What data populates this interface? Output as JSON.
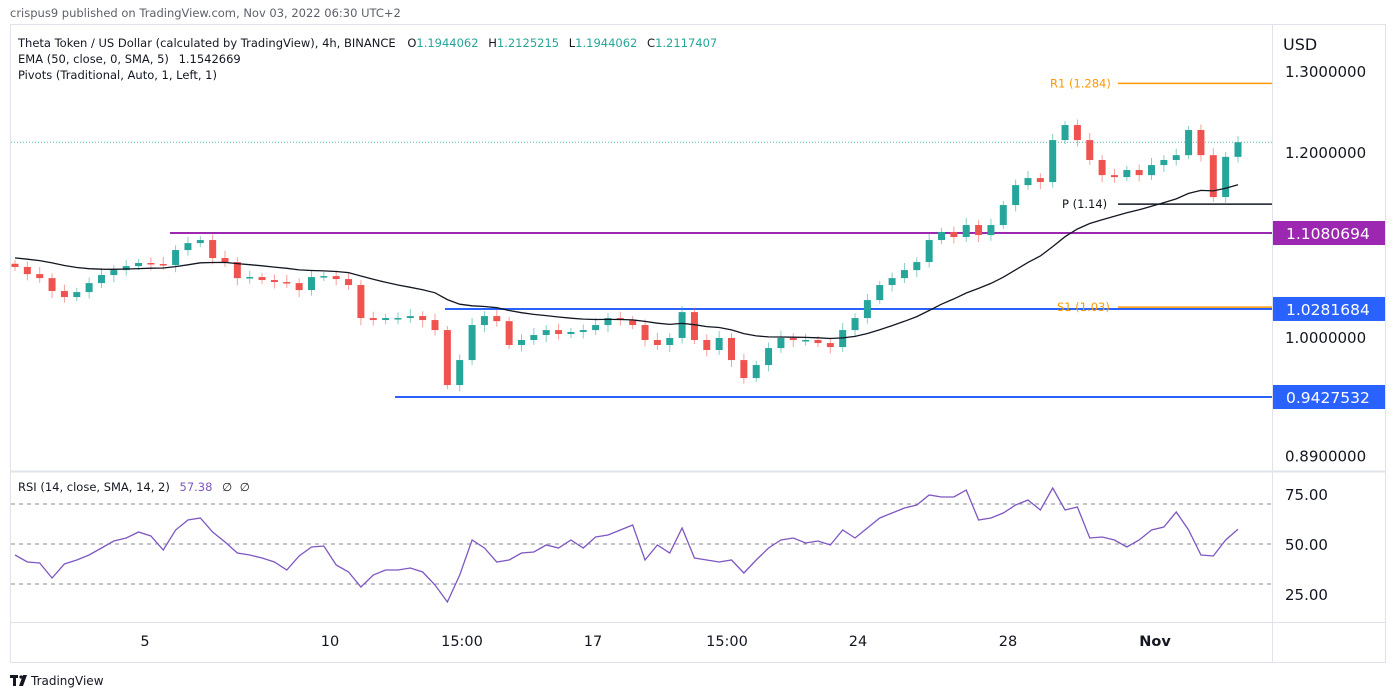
{
  "header": {
    "published": "crispus9 published on TradingView.com, Nov 03, 2022 06:30 UTC+2"
  },
  "legend": {
    "symbol": "Theta Token / US Dollar (calculated by TradingView), 4h, BINANCE",
    "o_label": "O",
    "o": "1.1944062",
    "h_label": "H",
    "h": "1.2125215",
    "l_label": "L",
    "l": "1.1944062",
    "c_label": "C",
    "c": "1.2117407",
    "ema": "EMA (50, close, 0, SMA, 5)",
    "ema_value": "1.1542669",
    "pivots": "Pivots (Traditional, Auto, 1, Left, 1)"
  },
  "rsi_legend": {
    "label": "RSI (14, close, SMA, 14, 2)",
    "value": "57.38",
    "extra1": "∅",
    "extra2": "∅"
  },
  "price_axis": {
    "currency": "USD",
    "ticks": [
      "1.3000000",
      "1.2000000",
      "1.0000000",
      "0.8900000"
    ],
    "tick_values": [
      1.3,
      1.2,
      1.0,
      0.89
    ],
    "scale": "log"
  },
  "rsi_axis": {
    "ticks": [
      "75.00",
      "50.00",
      "25.00"
    ],
    "tick_values": [
      75,
      50,
      25
    ],
    "bands": [
      70,
      50,
      30
    ]
  },
  "time_axis": {
    "labels": [
      "5",
      "10",
      "15:00",
      "17",
      "15:00",
      "24",
      "28",
      "Nov"
    ]
  },
  "levels": {
    "purple": {
      "label": "1.1080694",
      "value": 1.1080694,
      "color": "#9c27b0"
    },
    "blue_upper": {
      "label": "1.0281684",
      "value": 1.0281684,
      "color": "#2962ff"
    },
    "blue_lower": {
      "label": "0.9427532",
      "value": 0.9427532,
      "color": "#2962ff"
    }
  },
  "pivots": {
    "r1": {
      "label": "R1 (1.284)",
      "value": 1.284,
      "color": "#ff9800"
    },
    "p": {
      "label": "P (1.14)",
      "value": 1.14,
      "color": "#131722"
    },
    "s1": {
      "label": "S1 (1.03)",
      "value": 1.03,
      "color": "#ff9800"
    }
  },
  "colors": {
    "up": "#26a69a",
    "down": "#ef5350",
    "ema": "#131722",
    "rsi": "#7e57c2",
    "last_price_line": "#26a69a"
  },
  "footer": {
    "brand": "TradingView"
  },
  "chart_data": {
    "type": "candlestick",
    "interval": "4h",
    "y_scale": "log",
    "ylim": [
      0.87,
      1.33
    ],
    "last_close": 1.2117407,
    "close": [
      1.0716,
      1.0641,
      1.0599,
      1.0465,
      1.0403,
      1.0454,
      1.0547,
      1.0631,
      1.0683,
      1.0725,
      1.0758,
      1.0747,
      1.0736,
      1.0896,
      1.0971,
      1.1004,
      1.0811,
      1.0768,
      1.0599,
      1.061,
      1.0579,
      1.0558,
      1.0547,
      1.0475,
      1.061,
      1.062,
      1.0589,
      1.0527,
      1.019,
      1.017,
      1.019,
      1.019,
      1.021,
      1.017,
      1.007,
      0.9539,
      0.9777,
      1.012,
      1.021,
      1.0159,
      0.9923,
      0.9972,
      1.0021,
      1.007,
      1.0031,
      1.0051,
      1.007,
      1.012,
      1.019,
      1.017,
      1.012,
      0.9972,
      0.9923,
      0.9992,
      1.025,
      0.9972,
      0.9874,
      0.9992,
      0.9777,
      0.9605,
      0.9729,
      0.9893,
      0.9992,
      0.9972,
      0.9972,
      0.9942,
      0.9903,
      1.007,
      1.019,
      1.0372,
      1.0527,
      1.0599,
      1.0683,
      1.0768,
      1.1004,
      1.1092,
      1.1037,
      1.1168,
      1.1058,
      1.1168,
      1.139,
      1.1616,
      1.1697,
      1.1651,
      1.2143,
      1.2324,
      1.2143,
      1.1907,
      1.1731,
      1.1708,
      1.179,
      1.1731,
      1.1848,
      1.1907,
      1.1964,
      1.2264,
      1.1964,
      1.148,
      1.1944,
      1.2117
    ],
    "rsi": [
      44.5,
      41,
      40.5,
      33,
      40,
      42,
      44.5,
      48,
      51.5,
      53,
      56,
      54,
      47,
      57,
      62,
      63,
      56,
      51,
      45.5,
      44.5,
      43,
      41,
      37,
      44,
      48.5,
      49,
      39.5,
      36,
      28.5,
      34.5,
      37,
      37,
      38,
      36,
      29.5,
      21,
      34.5,
      52,
      48,
      41,
      42,
      45.5,
      46,
      49.5,
      48,
      52,
      48,
      53.5,
      54.5,
      57,
      59.5,
      42,
      49.5,
      45.5,
      58,
      43,
      42,
      41,
      42,
      35.5,
      42,
      48,
      52,
      53,
      50.5,
      51.5,
      49.5,
      57,
      53,
      58,
      63,
      65.5,
      68,
      69.5,
      74.5,
      73.5,
      73.5,
      77,
      62,
      63,
      65.5,
      69.5,
      72,
      67,
      78,
      67,
      68.5,
      53,
      53.5,
      52,
      48.5,
      52,
      57,
      58.5,
      66,
      57,
      44.5,
      44,
      52,
      57.38
    ]
  }
}
